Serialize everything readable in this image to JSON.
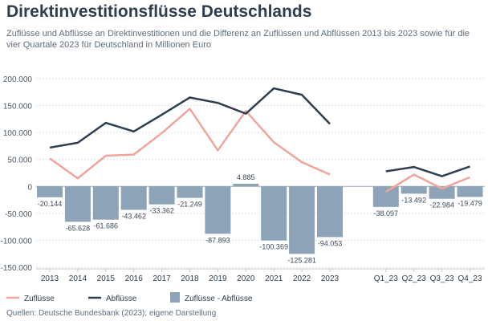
{
  "title": "Direktinvestitionsflüsse Deutschlands",
  "subtitle": "Zuflüsse und Abflüsse an Direktinvestitionen und die Differenz an Zuflüssen und Abflüssen 2013 bis 2023 sowie für die vier Quartale 2023 für Deutschland in Millionen Euro",
  "source": "Quellen: Deutsche Bundesbank (2023); eigene Darstellung",
  "chart_data": {
    "type": "bar+line",
    "categories": [
      "2013",
      "2014",
      "2015",
      "2016",
      "2017",
      "2018",
      "2019",
      "2020",
      "2021",
      "2022",
      "2023",
      "Q1_23",
      "Q2_23",
      "Q3_23",
      "Q4_23"
    ],
    "series": [
      {
        "name": "Zuflüsse",
        "type": "line",
        "color": "#f0a49b",
        "values": [
          52000,
          15000,
          57000,
          59000,
          99000,
          144000,
          67000,
          140000,
          82000,
          45000,
          22000,
          -10000,
          22000,
          -4000,
          17000
        ]
      },
      {
        "name": "Abflüsse",
        "type": "line",
        "color": "#2c3e50",
        "values": [
          72000,
          81000,
          118000,
          102000,
          133000,
          165000,
          155000,
          135000,
          182000,
          170000,
          116000,
          28000,
          36000,
          19000,
          37000
        ]
      },
      {
        "name": "Zuflüsse - Abflüsse",
        "type": "bar",
        "color": "#8da3b8",
        "values": [
          -20144,
          -65628,
          -61686,
          -43462,
          -33362,
          -21249,
          -87893,
          4885,
          -100369,
          -125281,
          -94053,
          -38097,
          -13492,
          -22984,
          -19479
        ],
        "labels": [
          "-20.144",
          "-65.628",
          "-61.686",
          "-43.462",
          "-33.362",
          "-21.249",
          "-87.893",
          "4.885",
          "-100.369",
          "-125.281",
          "-94.053",
          "-38.097",
          "-13.492",
          "-22.984",
          "-19.479"
        ]
      }
    ],
    "yticks": [
      200000,
      150000,
      100000,
      50000,
      0,
      -50000,
      -100000,
      -150000
    ],
    "ytick_labels": [
      "200.000",
      "150.000",
      "100.000",
      "50.000",
      "0",
      "-50.000",
      "-100.000",
      "-150.000"
    ],
    "ylim": [
      -150000,
      200000
    ],
    "grid": true,
    "legend": "bottom-left"
  }
}
